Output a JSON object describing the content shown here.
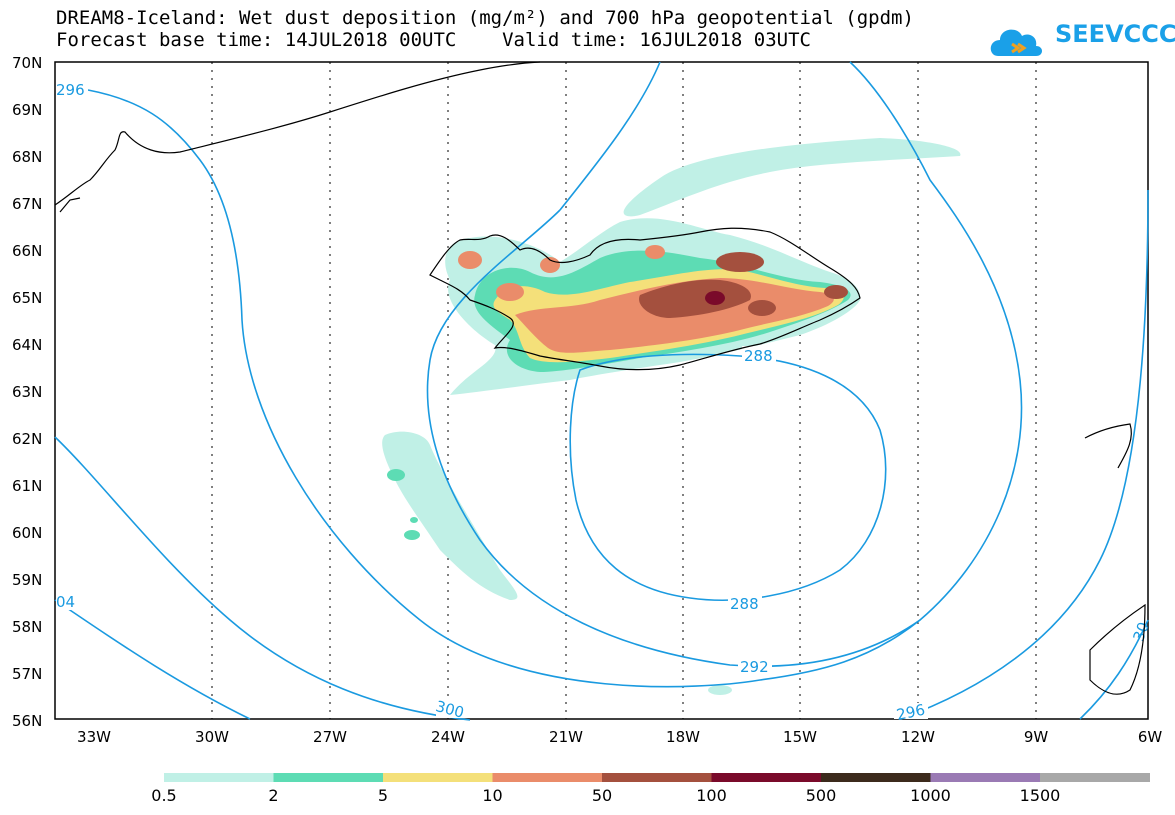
{
  "title": {
    "line1": "DREAM8-Iceland: Wet dust deposition (mg/m²) and 700 hPa geopotential (gpdm)",
    "line2": "Forecast base time: 14JUL2018 00UTC    Valid time: 16JUL2018 03UTC"
  },
  "logo": {
    "text": "SEEVCCC",
    "icon": "cloud-logo-icon"
  },
  "axes": {
    "lat_labels": [
      "70N",
      "69N",
      "68N",
      "67N",
      "66N",
      "65N",
      "64N",
      "63N",
      "62N",
      "61N",
      "60N",
      "59N",
      "58N",
      "57N",
      "56N"
    ],
    "lon_labels": [
      "33W",
      "30W",
      "27W",
      "24W",
      "21W",
      "18W",
      "15W",
      "12W",
      "9W",
      "6W"
    ]
  },
  "contours": {
    "labels": [
      "296",
      "288",
      "288",
      "292",
      "300",
      "296",
      "04",
      "30"
    ]
  },
  "legend": {
    "labels": [
      "0.5",
      "2",
      "5",
      "10",
      "50",
      "100",
      "500",
      "1000",
      "1500"
    ],
    "colors": [
      "#c0f0e6",
      "#5ddcb4",
      "#f4e07a",
      "#ea8c6a",
      "#a4503e",
      "#7a0a2a",
      "#3c2a1c",
      "#9a7ab4",
      "#a8a8a8"
    ]
  },
  "colors": {
    "contour": "#1a9ae0",
    "coast": "#000000"
  }
}
